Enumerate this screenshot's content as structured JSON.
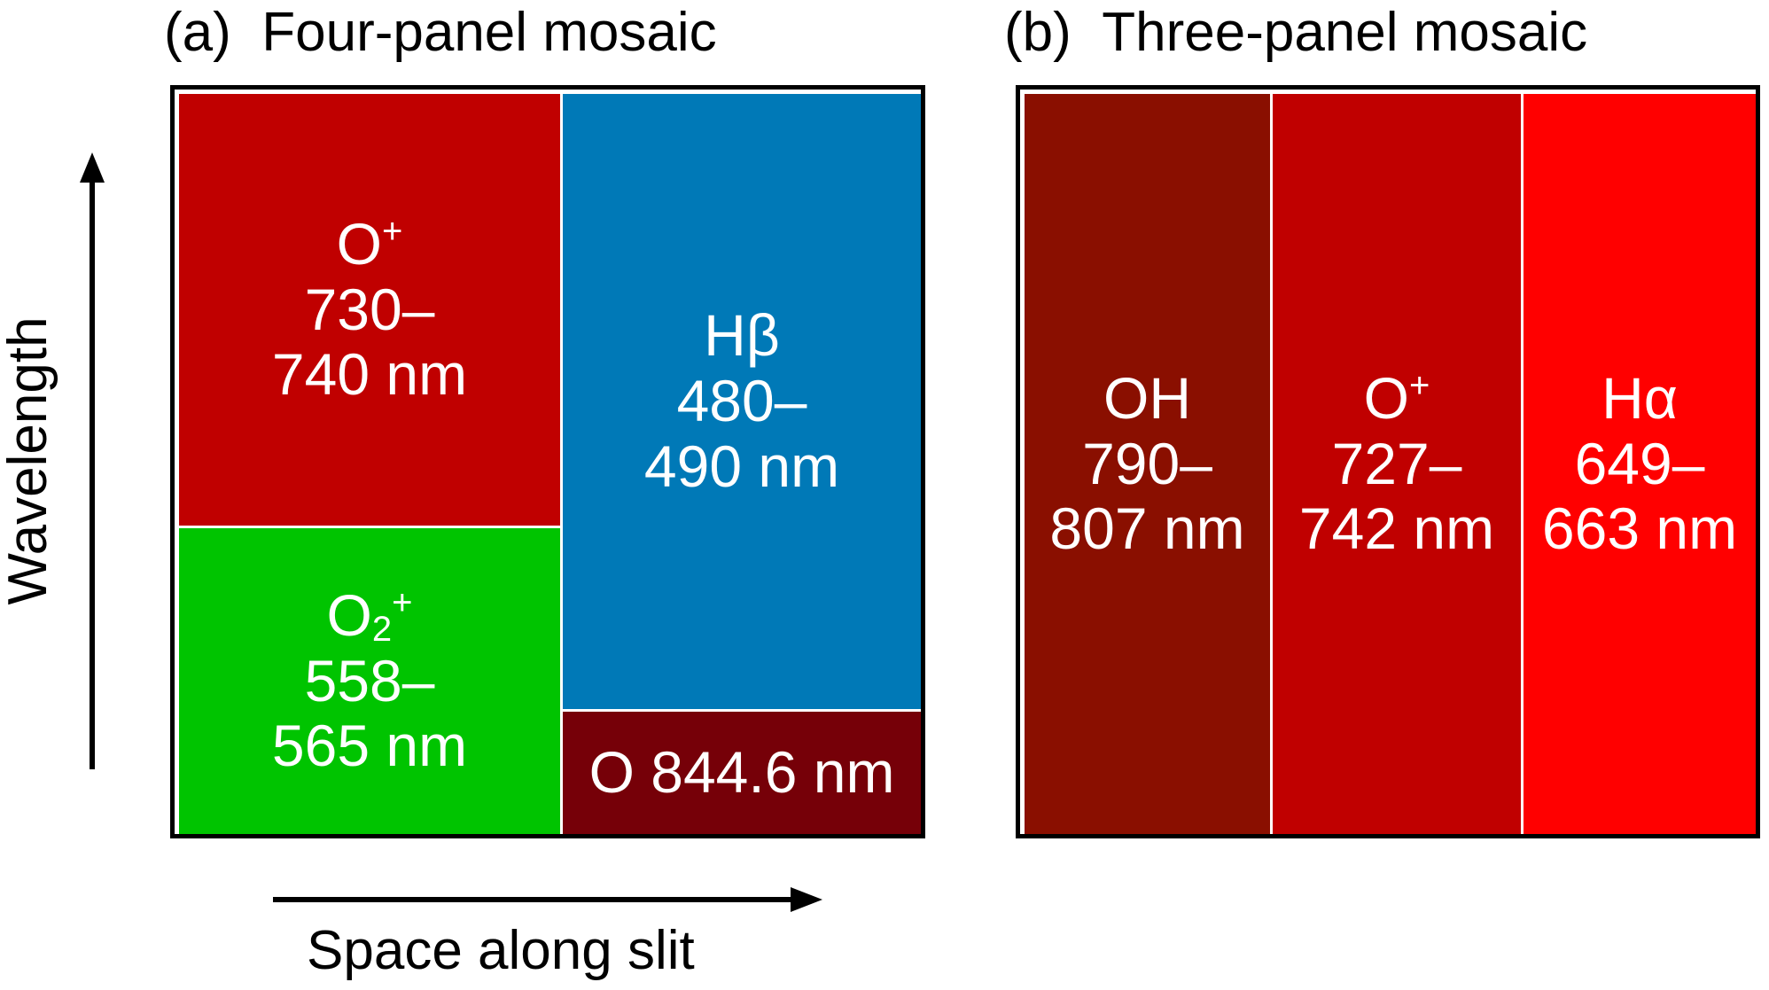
{
  "panel_a": {
    "tag": "(a)",
    "title": "Four-panel mosaic",
    "cells": [
      {
        "species": "O",
        "sup": "+",
        "range_l1": "730–",
        "range_l2": "740 nm",
        "color": "#c00000"
      },
      {
        "species": "O",
        "sub": "2",
        "sup": "+",
        "range_l1": "558–",
        "range_l2": "565 nm",
        "color": "#00c400"
      },
      {
        "species": "Hβ",
        "range_l1": "480–",
        "range_l2": "490 nm",
        "color": "#0079b7"
      },
      {
        "label": "O 844.6 nm",
        "color": "#760008"
      }
    ]
  },
  "panel_b": {
    "tag": "(b)",
    "title": "Three-panel mosaic",
    "cells": [
      {
        "species": "OH",
        "range_l1": "790–",
        "range_l2": "807 nm",
        "color": "#8a0f00"
      },
      {
        "species": "O",
        "sup": "+",
        "range_l1": "727–",
        "range_l2": "742 nm",
        "color": "#c00000"
      },
      {
        "species": "Hα",
        "range_l1": "649–",
        "range_l2": "663 nm",
        "color": "#ff0000"
      }
    ]
  },
  "axes": {
    "vertical_label": "Wavelength",
    "horizontal_label": "Space along slit"
  }
}
